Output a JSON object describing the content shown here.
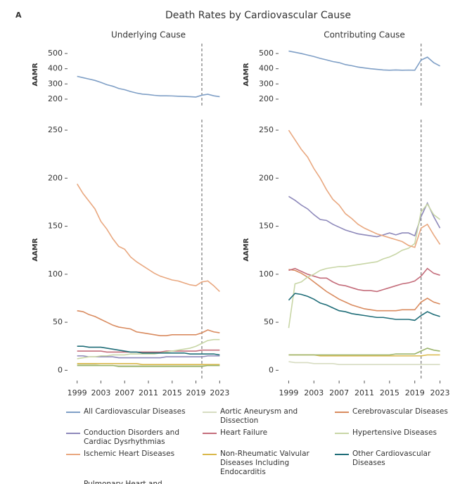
{
  "panel_label": "A",
  "title": "Death Rates by Cardiovascular Cause",
  "chart_data": [
    {
      "type": "line",
      "title": "Underlying Cause",
      "ylabel": "AAMR",
      "x": [
        1999,
        2000,
        2001,
        2002,
        2003,
        2004,
        2005,
        2006,
        2007,
        2008,
        2009,
        2010,
        2011,
        2012,
        2013,
        2014,
        2015,
        2016,
        2017,
        2018,
        2019,
        2020,
        2021,
        2022,
        2023
      ],
      "xlim": [
        1997.5,
        2024.5
      ],
      "xticks": [
        1999,
        2003,
        2007,
        2011,
        2015,
        2019,
        2023
      ],
      "ylim": [
        158,
        565
      ],
      "yticks": [
        200,
        300,
        400,
        500
      ],
      "vline": 2020,
      "series": [
        {
          "name": "All Cardiovascular Diseases",
          "color": "#7f9fc6",
          "values": [
            350,
            341,
            332,
            323,
            310,
            295,
            285,
            270,
            262,
            250,
            240,
            233,
            230,
            225,
            222,
            222,
            221,
            219,
            218,
            216,
            214,
            226,
            232,
            222,
            216
          ]
        }
      ]
    },
    {
      "type": "line",
      "title": "Contributing Cause",
      "ylabel": "AAMR",
      "x": [
        1999,
        2000,
        2001,
        2002,
        2003,
        2004,
        2005,
        2006,
        2007,
        2008,
        2009,
        2010,
        2011,
        2012,
        2013,
        2014,
        2015,
        2016,
        2017,
        2018,
        2019,
        2020,
        2021,
        2022,
        2023
      ],
      "xlim": [
        1997.5,
        2024.5
      ],
      "xticks": [
        1999,
        2003,
        2007,
        2011,
        2015,
        2019,
        2023
      ],
      "ylim": [
        158,
        565
      ],
      "yticks": [
        200,
        300,
        400,
        500
      ],
      "vline": 2020,
      "series": [
        {
          "color": "#7f9fc6",
          "values": [
            516,
            508,
            500,
            490,
            480,
            468,
            458,
            447,
            440,
            427,
            420,
            411,
            405,
            400,
            396,
            392,
            390,
            392,
            390,
            391,
            390,
            457,
            476,
            440,
            418
          ]
        }
      ]
    },
    {
      "type": "line",
      "ylabel": "AAMR",
      "x": [
        1999,
        2000,
        2001,
        2002,
        2003,
        2004,
        2005,
        2006,
        2007,
        2008,
        2009,
        2010,
        2011,
        2012,
        2013,
        2014,
        2015,
        2016,
        2017,
        2018,
        2019,
        2020,
        2021,
        2022,
        2023
      ],
      "xlim": [
        1997.5,
        2024.5
      ],
      "xticks": [
        1999,
        2003,
        2007,
        2011,
        2015,
        2019,
        2023
      ],
      "ylim": [
        -10,
        261
      ],
      "yticks": [
        0,
        50,
        100,
        150,
        200,
        250
      ],
      "vline": 2020,
      "series": [
        {
          "name": "Aortic Aneurysm and Dissection",
          "color": "#d7dcc2",
          "values": [
            6,
            6,
            6,
            6,
            5,
            5,
            5,
            5,
            5,
            5,
            5,
            5,
            5,
            5,
            5,
            5,
            5,
            5,
            5,
            5,
            5,
            5,
            5,
            5,
            5
          ]
        },
        {
          "name": "Cerebrovascular Diseases",
          "color": "#d98b5f",
          "values": [
            62,
            61,
            58,
            56,
            53,
            50,
            47,
            45,
            44,
            43,
            40,
            39,
            38,
            37,
            36,
            36,
            37,
            37,
            37,
            37,
            37,
            39,
            42,
            40,
            39
          ]
        },
        {
          "name": "Conduction Disorders and Cardiac Dysrhythmias",
          "color": "#8d88ba",
          "values": [
            15,
            15,
            14,
            14,
            14,
            14,
            14,
            13,
            13,
            13,
            13,
            13,
            13,
            13,
            13,
            14,
            14,
            14,
            14,
            14,
            14,
            14,
            15,
            15,
            15
          ]
        },
        {
          "name": "Heart Failure",
          "color": "#c46d7b",
          "values": [
            20,
            20,
            20,
            20,
            20,
            19,
            19,
            19,
            19,
            19,
            19,
            19,
            19,
            19,
            19,
            20,
            20,
            20,
            20,
            20,
            20,
            21,
            21,
            21,
            21
          ]
        },
        {
          "name": "Hypertensive Diseases",
          "color": "#c8d6a6",
          "values": [
            12,
            13,
            14,
            14,
            15,
            15,
            16,
            16,
            16,
            17,
            17,
            17,
            17,
            17,
            18,
            19,
            20,
            21,
            22,
            23,
            25,
            28,
            31,
            32,
            32
          ]
        },
        {
          "name": "Ischemic Heart Diseases",
          "color": "#e9a880",
          "values": [
            194,
            184,
            176,
            168,
            155,
            147,
            137,
            129,
            126,
            118,
            113,
            109,
            105,
            101,
            98,
            96,
            94,
            93,
            91,
            89,
            88,
            92,
            93,
            88,
            82
          ]
        },
        {
          "name": "Non-Rheumatic Valvular Diseases Including Endocarditis",
          "color": "#d9b84a",
          "values": [
            7,
            7,
            7,
            7,
            7,
            7,
            7,
            7,
            7,
            7,
            7,
            6,
            6,
            6,
            6,
            6,
            6,
            6,
            6,
            6,
            6,
            6,
            6,
            6,
            6
          ]
        },
        {
          "name": "Other Cardiovascular Diseases",
          "color": "#1f6d78",
          "values": [
            25,
            25,
            24,
            24,
            24,
            23,
            22,
            21,
            20,
            19,
            19,
            18,
            18,
            18,
            18,
            18,
            18,
            18,
            18,
            17,
            17,
            17,
            17,
            17,
            16
          ]
        },
        {
          "name": "Pulmonary Heart and Circulatory Diseases",
          "color": "#9bb46b",
          "values": [
            5,
            5,
            5,
            5,
            5,
            5,
            5,
            4,
            4,
            4,
            4,
            4,
            4,
            4,
            4,
            4,
            4,
            4,
            4,
            4,
            4,
            4,
            5,
            5,
            5
          ]
        }
      ]
    },
    {
      "type": "line",
      "ylabel": "AAMR",
      "x": [
        1999,
        2000,
        2001,
        2002,
        2003,
        2004,
        2005,
        2006,
        2007,
        2008,
        2009,
        2010,
        2011,
        2012,
        2013,
        2014,
        2015,
        2016,
        2017,
        2018,
        2019,
        2020,
        2021,
        2022,
        2023
      ],
      "xlim": [
        1997.5,
        2024.5
      ],
      "xticks": [
        1999,
        2003,
        2007,
        2011,
        2015,
        2019,
        2023
      ],
      "ylim": [
        -10,
        261
      ],
      "yticks": [
        0,
        50,
        100,
        150,
        200,
        250
      ],
      "vline": 2020,
      "series": [
        {
          "color": "#d7dcc2",
          "values": [
            9,
            8,
            8,
            8,
            7,
            7,
            7,
            7,
            6,
            6,
            6,
            6,
            6,
            6,
            6,
            6,
            6,
            6,
            6,
            6,
            6,
            6,
            6,
            6,
            6
          ]
        },
        {
          "color": "#d98b5f",
          "values": [
            105,
            104,
            101,
            97,
            92,
            87,
            82,
            78,
            74,
            71,
            68,
            66,
            64,
            63,
            62,
            62,
            62,
            62,
            63,
            63,
            63,
            71,
            75,
            71,
            69
          ]
        },
        {
          "color": "#8d88ba",
          "values": [
            181,
            177,
            172,
            168,
            162,
            157,
            156,
            152,
            149,
            146,
            144,
            142,
            141,
            140,
            139,
            141,
            143,
            141,
            143,
            143,
            140,
            160,
            174,
            160,
            148
          ]
        },
        {
          "color": "#c46d7b",
          "values": [
            104,
            106,
            103,
            100,
            98,
            96,
            96,
            92,
            89,
            88,
            86,
            84,
            83,
            83,
            82,
            84,
            86,
            88,
            90,
            91,
            93,
            98,
            106,
            101,
            99
          ]
        },
        {
          "color": "#c8d6a6",
          "values": [
            44,
            90,
            92,
            97,
            100,
            104,
            106,
            107,
            108,
            108,
            109,
            110,
            111,
            112,
            113,
            116,
            118,
            121,
            125,
            127,
            132,
            165,
            173,
            162,
            157
          ]
        },
        {
          "color": "#e9a880",
          "values": [
            250,
            240,
            230,
            222,
            210,
            200,
            188,
            178,
            172,
            163,
            158,
            152,
            148,
            145,
            142,
            140,
            138,
            136,
            134,
            130,
            128,
            148,
            152,
            141,
            131
          ]
        },
        {
          "color": "#d9b84a",
          "values": [
            16,
            16,
            16,
            16,
            16,
            15,
            15,
            15,
            15,
            15,
            15,
            15,
            15,
            15,
            15,
            15,
            15,
            15,
            15,
            15,
            15,
            15,
            16,
            16,
            16
          ]
        },
        {
          "color": "#1f6d78",
          "values": [
            73,
            80,
            79,
            77,
            74,
            70,
            68,
            65,
            62,
            61,
            59,
            58,
            57,
            56,
            55,
            55,
            54,
            53,
            53,
            53,
            52,
            57,
            61,
            58,
            56
          ]
        },
        {
          "color": "#9bb46b",
          "values": [
            16,
            16,
            16,
            16,
            16,
            16,
            16,
            16,
            16,
            16,
            16,
            16,
            16,
            16,
            16,
            16,
            16,
            17,
            17,
            17,
            17,
            20,
            23,
            21,
            20
          ]
        }
      ]
    }
  ]
}
